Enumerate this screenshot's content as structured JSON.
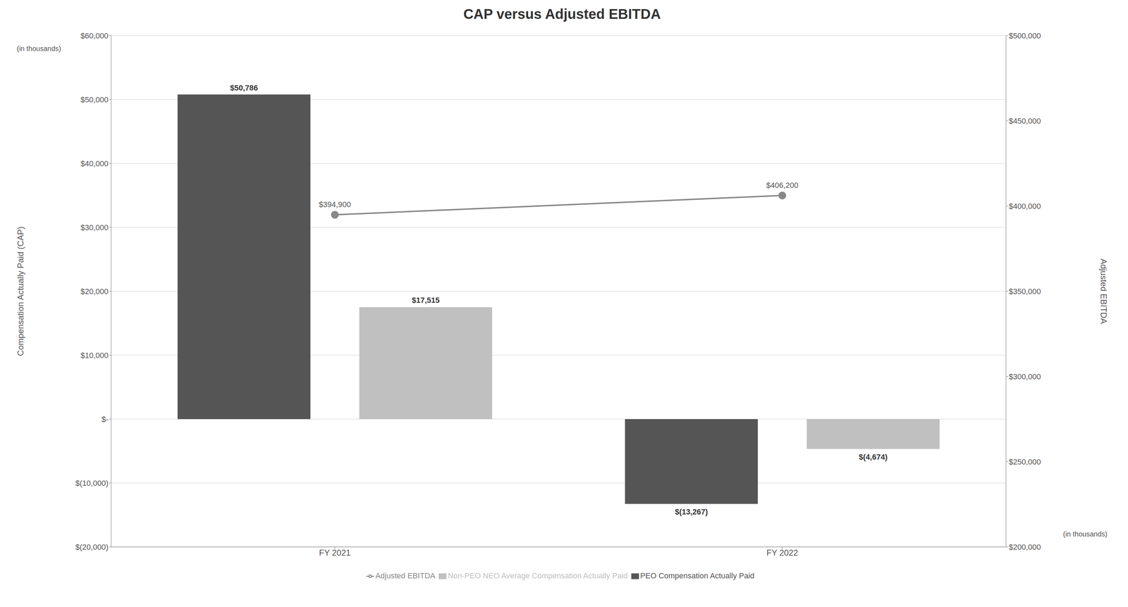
{
  "chart_data": {
    "type": "bar",
    "title": "CAP versus Adjusted EBITDA",
    "categories": [
      "FY 2021",
      "FY 2022"
    ],
    "series": [
      {
        "name": "PEO Compensation Actually Paid",
        "color": "#555555",
        "values": [
          50786,
          -13267
        ],
        "value_labels": [
          "$50,786",
          "$(13,267)"
        ]
      },
      {
        "name": "Non-PEO NEO Average Compensation Actually Paid",
        "color": "#c0c0c0",
        "values": [
          17515,
          -4674
        ],
        "value_labels": [
          "$17,515",
          "$(4,674)"
        ]
      },
      {
        "name": "Adjusted EBITDA",
        "type": "line",
        "axis": "y2",
        "color": "#888888",
        "marker": "circle",
        "values": [
          394900,
          406200
        ],
        "value_labels": [
          "$394,900",
          "$406,200"
        ]
      }
    ],
    "ylabel": "Compensation Actually Paid (CAP)",
    "ylabel_subtitle": "(in thousands)",
    "y2label": "Adjusted EBITDA",
    "y2label_subtitle": "(in thousands)",
    "ylim": [
      -20000,
      60000
    ],
    "yticks": [
      {
        "value": -20000,
        "label": "$(20,000)"
      },
      {
        "value": -10000,
        "label": "$(10,000)"
      },
      {
        "value": 0,
        "label": "$-"
      },
      {
        "value": 10000,
        "label": "$10,000"
      },
      {
        "value": 20000,
        "label": "$20,000"
      },
      {
        "value": 30000,
        "label": "$30,000"
      },
      {
        "value": 40000,
        "label": "$40,000"
      },
      {
        "value": 50000,
        "label": "$50,000"
      },
      {
        "value": 60000,
        "label": "$60,000"
      }
    ],
    "y2lim": [
      200000,
      500000
    ],
    "y2ticks": [
      {
        "value": 200000,
        "label": "$200,000"
      },
      {
        "value": 250000,
        "label": "$250,000"
      },
      {
        "value": 300000,
        "label": "$300,000"
      },
      {
        "value": 350000,
        "label": "$350,000"
      },
      {
        "value": 400000,
        "label": "$400,000"
      },
      {
        "value": 450000,
        "label": "$450,000"
      },
      {
        "value": 500000,
        "label": "$500,000"
      }
    ],
    "grid": true,
    "legend": "bottom",
    "data_labels": true
  }
}
